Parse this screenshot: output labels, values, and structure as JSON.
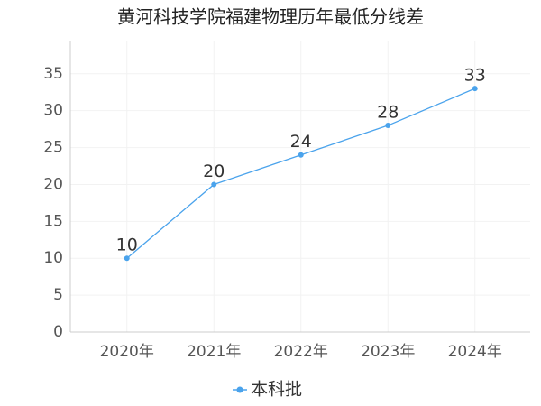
{
  "chart_data": {
    "type": "line",
    "title": "黄河科技学院福建物理历年最低分线差",
    "categories": [
      "2020年",
      "2021年",
      "2022年",
      "2023年",
      "2024年"
    ],
    "series": [
      {
        "name": "本科批",
        "color": "#4aa3ec",
        "values": [
          10,
          20,
          24,
          28,
          33
        ]
      }
    ],
    "ylim": [
      0,
      39.5
    ],
    "yticks": [
      0,
      5,
      10,
      15,
      20,
      25,
      30,
      35
    ],
    "grid": true
  }
}
